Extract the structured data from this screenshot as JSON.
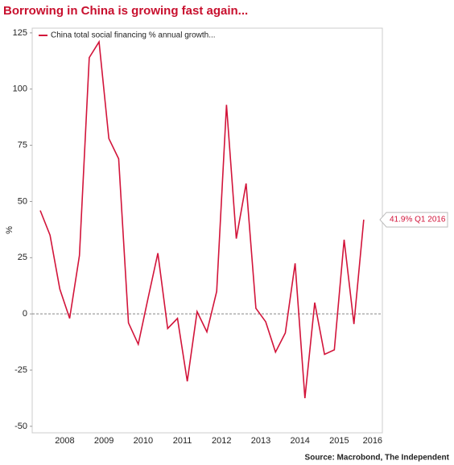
{
  "chart_data": {
    "type": "line",
    "title": "Borrowing in China is growing fast again...",
    "y_label": "%",
    "source": "Source: Macrobond, The Independent",
    "annotation": "41.9% Q1 2016",
    "x": [
      2007.875,
      2008.125,
      2008.375,
      2008.625,
      2008.875,
      2009.125,
      2009.375,
      2009.625,
      2009.875,
      2010.125,
      2010.375,
      2010.625,
      2010.875,
      2011.125,
      2011.375,
      2011.625,
      2011.875,
      2012.125,
      2012.375,
      2012.625,
      2012.875,
      2013.125,
      2013.375,
      2013.625,
      2013.875,
      2014.125,
      2014.375,
      2014.625,
      2014.875,
      2015.125,
      2015.375,
      2015.625,
      2015.875,
      2016.125
    ],
    "series": [
      {
        "name": "China total social financing % annual growth...",
        "color": "#d2143a",
        "values": [
          46,
          35,
          11,
          -2,
          26,
          114,
          121,
          78,
          69,
          -4,
          -13.5,
          7,
          27,
          -6.5,
          -2,
          -30,
          1,
          -8,
          10,
          93,
          33.5,
          58,
          2.5,
          -3.5,
          -17,
          -8.5,
          22.5,
          -37.5,
          5,
          -18,
          -16,
          33,
          -4.5,
          41.9
        ]
      }
    ],
    "xlim": [
      2007.67,
      2016.6
    ],
    "xticks": [
      {
        "value": 2008.5,
        "label": "2008"
      },
      {
        "value": 2009.5,
        "label": "2009"
      },
      {
        "value": 2010.5,
        "label": "2010"
      },
      {
        "value": 2011.5,
        "label": "2011"
      },
      {
        "value": 2012.5,
        "label": "2012"
      },
      {
        "value": 2013.5,
        "label": "2013"
      },
      {
        "value": 2014.5,
        "label": "2014"
      },
      {
        "value": 2015.5,
        "label": "2015"
      },
      {
        "value": 2016.35,
        "label": "2016"
      }
    ],
    "ylim": [
      -52.9,
      127.1
    ],
    "yticks": [
      -50,
      -25,
      0,
      25,
      50,
      75,
      100,
      125
    ],
    "zero_line": true
  }
}
